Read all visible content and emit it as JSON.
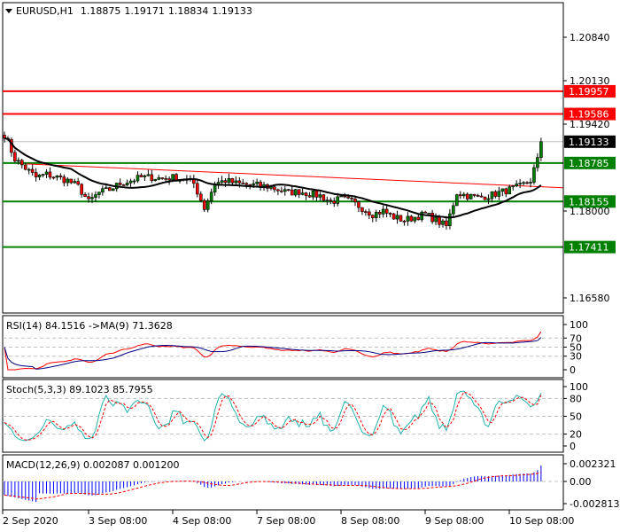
{
  "symbol_header": {
    "symbol": "EURUSD,H1",
    "open": "1.18875",
    "high": "1.19171",
    "low": "1.18834",
    "close": "1.19133"
  },
  "main_axis_labels": [
    "1.20840",
    "1.20130",
    "1.19420",
    "1.18000",
    "1.16580"
  ],
  "levels": [
    {
      "price": "1.19957",
      "color": "#ff0000"
    },
    {
      "price": "1.19586",
      "color": "#ff0000"
    },
    {
      "price": "1.18785",
      "color": "#008000"
    },
    {
      "price": "1.18155",
      "color": "#008000"
    },
    {
      "price": "1.17411",
      "color": "#008000"
    }
  ],
  "current_price": {
    "price": "1.19133",
    "color": "#000000"
  },
  "rsi": {
    "label": "RSI(14) 84.1516  ->MA(9) 71.3628",
    "axis": [
      "100",
      "70",
      "50",
      "30",
      "0"
    ],
    "colors": {
      "rsi": "#ff0000",
      "ma": "#000080"
    }
  },
  "stoch": {
    "label": "Stoch(5,3,3) 89.1023 85.7955",
    "axis": [
      "100",
      "80",
      "50",
      "20",
      "0"
    ],
    "colors": {
      "main": "#20b2aa",
      "signal": "#ff0000"
    }
  },
  "macd": {
    "label": "MACD(12,26,9) 0.002087 0.001200",
    "axis": [
      "0.002321",
      "0.00",
      "-0.002813"
    ],
    "colors": {
      "histogram": "#0000ff",
      "signal": "#ff0000"
    }
  },
  "time_axis": [
    "2 Sep 2020",
    "3 Sep 08:00",
    "4 Sep 08:00",
    "7 Sep 08:00",
    "8 Sep 08:00",
    "9 Sep 08:00",
    "10 Sep 08:00"
  ],
  "chart_data": {
    "type": "candlestick",
    "timeframe": "H1",
    "ylim": [
      1.163,
      1.213
    ],
    "close_every_3h_approx": [
      1.1925,
      1.1885,
      1.187,
      1.1855,
      1.186,
      1.1855,
      1.185,
      1.184,
      1.1815,
      1.183,
      1.1835,
      1.1845,
      1.185,
      1.1855,
      1.1855,
      1.1853,
      1.1855,
      1.1852,
      1.1845,
      1.1805,
      1.1845,
      1.185,
      1.1845,
      1.1843,
      1.1842,
      1.184,
      1.1835,
      1.183,
      1.1832,
      1.1828,
      1.1825,
      1.1815,
      1.182,
      1.1815,
      1.1805,
      1.1795,
      1.18,
      1.179,
      1.1785,
      1.179,
      1.1795,
      1.1785,
      1.1775,
      1.183,
      1.1825,
      1.1822,
      1.1825,
      1.183,
      1.1835,
      1.184,
      1.185,
      1.1913
    ],
    "trendline": {
      "start_price": 1.1877,
      "end_price": 1.1838,
      "color": "#ff0000"
    },
    "moving_average": {
      "color": "#000000"
    },
    "bull_color": "#008000",
    "bear_color": "#ff0000"
  }
}
